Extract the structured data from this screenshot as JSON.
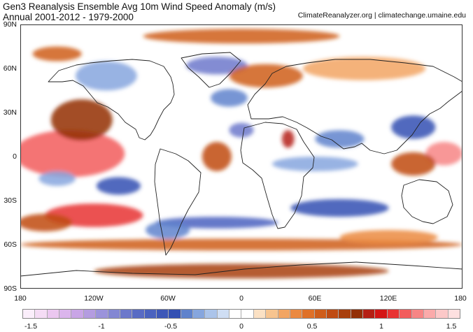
{
  "header": {
    "title_line1": "Gen3 Reanalysis Ensemble Avg 10m Wind Speed Anomaly (m/s)",
    "title_line2": "Annual 2001-2012 - 1979-2000",
    "source": "ClimateReanalyzer.org | climatechange.umaine.edu"
  },
  "map": {
    "lat_labels": [
      "90N",
      "60N",
      "30N",
      "0",
      "30S",
      "60S",
      "90S"
    ],
    "lon_labels": [
      "180",
      "120W",
      "60W",
      "0",
      "60E",
      "120E",
      "180"
    ],
    "lon_range": [
      -180,
      180
    ],
    "lat_range": [
      -90,
      90
    ],
    "projection": "equirectangular",
    "coastlines": true,
    "country_borders": true
  },
  "colorbar": {
    "labels": [
      "-1.5",
      "-1",
      "-0.5",
      "0",
      "0.5",
      "1",
      "1.5"
    ],
    "colors": [
      "#fbeefb",
      "#f5dcf5",
      "#ebc7f0",
      "#dbb5ec",
      "#c9a5e6",
      "#b49ce0",
      "#9b93db",
      "#8387d3",
      "#6c78cb",
      "#586bc4",
      "#4a62bf",
      "#3d57b8",
      "#3350b3",
      "#5f82cc",
      "#86a6de",
      "#abc4ea",
      "#cfdef4",
      "#ffffff",
      "#ffffff",
      "#fbe1c4",
      "#f7c48f",
      "#f2a563",
      "#eb8940",
      "#df7027",
      "#cf5d1a",
      "#bf4b12",
      "#a83f0c",
      "#932f06",
      "#b51f14",
      "#d41515",
      "#e83333",
      "#f25c5c",
      "#f78585",
      "#fbaaaa",
      "#fcc8c8",
      "#fde0e0"
    ]
  },
  "anomaly_regions": [
    {
      "lon": -140,
      "lat": 2,
      "rx": 45,
      "ry": 16,
      "value": 1.1
    },
    {
      "lon": -130,
      "lat": 25,
      "rx": 25,
      "ry": 14,
      "value": 0.8
    },
    {
      "lon": -120,
      "lat": -40,
      "rx": 40,
      "ry": 8,
      "value": 1.0
    },
    {
      "lon": -160,
      "lat": -45,
      "rx": 22,
      "ry": 6,
      "value": 0.6
    },
    {
      "lon": -100,
      "lat": -20,
      "rx": 18,
      "ry": 6,
      "value": -0.5
    },
    {
      "lon": -150,
      "lat": -15,
      "rx": 15,
      "ry": 5,
      "value": -0.3
    },
    {
      "lon": 165,
      "lat": 2,
      "rx": 15,
      "ry": 8,
      "value": 1.2
    },
    {
      "lon": 140,
      "lat": 20,
      "rx": 18,
      "ry": 8,
      "value": -0.5
    },
    {
      "lon": 60,
      "lat": -5,
      "rx": 35,
      "ry": 5,
      "value": -0.3
    },
    {
      "lon": 80,
      "lat": 12,
      "rx": 20,
      "ry": 6,
      "value": -0.4
    },
    {
      "lon": -20,
      "lat": 62,
      "rx": 25,
      "ry": 6,
      "value": -0.8
    },
    {
      "lon": -10,
      "lat": 40,
      "rx": 15,
      "ry": 6,
      "value": -0.4
    },
    {
      "lon": -20,
      "lat": 0,
      "rx": 12,
      "ry": 10,
      "value": 0.6
    },
    {
      "lon": 0,
      "lat": 18,
      "rx": 10,
      "ry": 5,
      "value": -0.8
    },
    {
      "lon": 38,
      "lat": 12,
      "rx": 5,
      "ry": 6,
      "value": 0.9
    },
    {
      "lon": 20,
      "lat": 55,
      "rx": 30,
      "ry": 8,
      "value": 0.5
    },
    {
      "lon": 100,
      "lat": 60,
      "rx": 50,
      "ry": 8,
      "value": 0.3
    },
    {
      "lon": 0,
      "lat": 82,
      "rx": 80,
      "ry": 5,
      "value": 0.5
    },
    {
      "lon": -150,
      "lat": 70,
      "rx": 20,
      "ry": 5,
      "value": 0.5
    },
    {
      "lon": -110,
      "lat": 55,
      "rx": 25,
      "ry": 10,
      "value": -0.3
    },
    {
      "lon": -20,
      "lat": -45,
      "rx": 50,
      "ry": 4,
      "value": -0.6
    },
    {
      "lon": 80,
      "lat": -35,
      "rx": 40,
      "ry": 6,
      "value": -0.5
    },
    {
      "lon": 0,
      "lat": -60,
      "rx": 180,
      "ry": 4,
      "value": 0.5
    },
    {
      "lon": 120,
      "lat": -55,
      "rx": 40,
      "ry": 5,
      "value": 0.4
    },
    {
      "lon": 0,
      "lat": -78,
      "rx": 120,
      "ry": 5,
      "value": 0.7
    },
    {
      "lon": 140,
      "lat": -5,
      "rx": 18,
      "ry": 8,
      "value": 0.6
    },
    {
      "lon": -60,
      "lat": -50,
      "rx": 18,
      "ry": 6,
      "value": -0.4
    }
  ]
}
